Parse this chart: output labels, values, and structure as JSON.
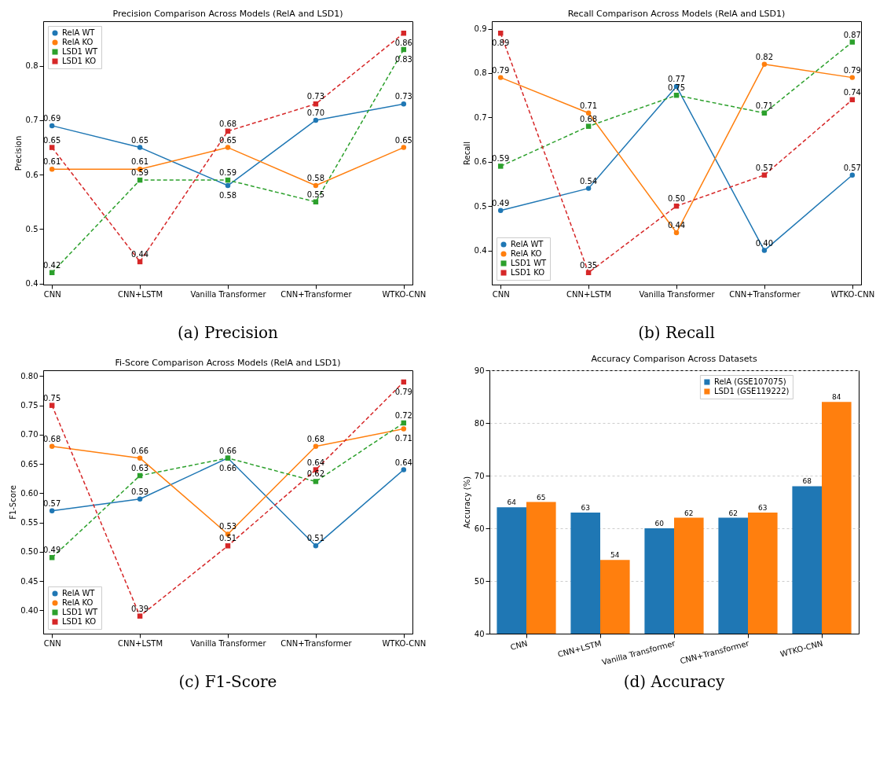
{
  "chart_data": [
    {
      "type": "line",
      "title": "Precision Comparison Across Models (RelA and LSD1)",
      "ylabel": "Precision",
      "categories": [
        "CNN",
        "CNN+LSTM",
        "Vanilla Transformer",
        "CNN+Transformer",
        "WTKO-CNN"
      ],
      "ylim": [
        0.398,
        0.882
      ],
      "yticks": [
        0.4,
        0.5,
        0.6,
        0.7,
        0.8
      ],
      "legend": "top left",
      "annotations": [
        "(a) Precision"
      ],
      "series": [
        {
          "name": "RelA WT",
          "color": "#1f77b4",
          "marker": "circle",
          "line_style": "solid",
          "values": [
            0.69,
            0.65,
            0.58,
            0.7,
            0.73
          ],
          "value_labels": [
            "0.69",
            "0.65",
            "0.58",
            "0.70",
            "0.73"
          ]
        },
        {
          "name": "RelA KO",
          "color": "#ff7f0e",
          "marker": "circle",
          "line_style": "solid",
          "values": [
            0.61,
            0.61,
            0.65,
            0.58,
            0.65
          ],
          "value_labels": [
            "0.61",
            "0.61",
            "0.65",
            "0.58",
            "0.65"
          ]
        },
        {
          "name": "LSD1 WT",
          "color": "#2ca02c",
          "marker": "square",
          "line_style": "dashed",
          "values": [
            0.42,
            0.59,
            0.59,
            0.55,
            0.83
          ],
          "value_labels": [
            "0.42",
            "0.59",
            "0.59",
            "0.55",
            "0.83"
          ]
        },
        {
          "name": "LSD1 KO",
          "color": "#d62728",
          "marker": "square",
          "line_style": "dashed",
          "values": [
            0.65,
            0.44,
            0.68,
            0.73,
            0.86
          ],
          "value_labels": [
            "0.65",
            "0.44",
            "0.68",
            "0.73",
            "0.86"
          ]
        }
      ]
    },
    {
      "type": "line",
      "title": "Recall Comparison Across Models (RelA and LSD1)",
      "ylabel": "Recall",
      "categories": [
        "CNN",
        "CNN+LSTM",
        "Vanilla Transformer",
        "CNN+Transformer",
        "WTKO-CNN"
      ],
      "ylim": [
        0.323,
        0.917
      ],
      "yticks": [
        0.4,
        0.5,
        0.6,
        0.7,
        0.8,
        0.9
      ],
      "legend": "bottom left",
      "annotations": [
        "(b) Recall"
      ],
      "series": [
        {
          "name": "RelA WT",
          "color": "#1f77b4",
          "marker": "circle",
          "line_style": "solid",
          "values": [
            0.49,
            0.54,
            0.77,
            0.4,
            0.57
          ],
          "value_labels": [
            "0.49",
            "0.54",
            "0.77",
            "0.40",
            "0.57"
          ]
        },
        {
          "name": "RelA KO",
          "color": "#ff7f0e",
          "marker": "circle",
          "line_style": "solid",
          "values": [
            0.79,
            0.71,
            0.44,
            0.82,
            0.79
          ],
          "value_labels": [
            "0.79",
            "0.71",
            "0.44",
            "0.82",
            "0.79"
          ]
        },
        {
          "name": "LSD1 WT",
          "color": "#2ca02c",
          "marker": "square",
          "line_style": "dashed",
          "values": [
            0.59,
            0.68,
            0.75,
            0.71,
            0.87
          ],
          "value_labels": [
            "0.59",
            "0.68",
            "0.75",
            "0.71",
            "0.87"
          ]
        },
        {
          "name": "LSD1 KO",
          "color": "#d62728",
          "marker": "square",
          "line_style": "dashed",
          "values": [
            0.89,
            0.35,
            0.5,
            0.57,
            0.74
          ],
          "value_labels": [
            "0.89",
            "0.35",
            "0.50",
            "0.57",
            "0.74"
          ]
        }
      ]
    },
    {
      "type": "line",
      "title": "Fi-Score Comparison Across Models (RelA and LSD1)",
      "ylabel": "F1-Score",
      "categories": [
        "CNN",
        "CNN+LSTM",
        "Vanilla Transformer",
        "CNN+Transformer",
        "WTKO-CNN"
      ],
      "ylim": [
        0.36,
        0.81
      ],
      "yticks": [
        {
          "value": 0.4,
          "label": "0.40"
        },
        {
          "value": 0.45,
          "label": "0.45"
        },
        {
          "value": 0.5,
          "label": "0.50"
        },
        {
          "value": 0.55,
          "label": "0.55"
        },
        {
          "value": 0.6,
          "label": "0.60"
        },
        {
          "value": 0.65,
          "label": "0.65"
        },
        {
          "value": 0.7,
          "label": "0.70"
        },
        {
          "value": 0.75,
          "label": "0.75"
        },
        {
          "value": 0.8,
          "label": "0.80"
        }
      ],
      "legend": "bottom left",
      "annotations": [
        "(c) F1-Score"
      ],
      "series": [
        {
          "name": "RelA WT",
          "color": "#1f77b4",
          "marker": "circle",
          "line_style": "solid",
          "values": [
            0.57,
            0.59,
            0.66,
            0.51,
            0.64
          ],
          "value_labels": [
            "0.57",
            "0.59",
            "0.66",
            "0.51",
            "0.64"
          ]
        },
        {
          "name": "RelA KO",
          "color": "#ff7f0e",
          "marker": "circle",
          "line_style": "solid",
          "values": [
            0.68,
            0.66,
            0.53,
            0.68,
            0.71
          ],
          "value_labels": [
            "0.68",
            "0.66",
            "0.53",
            "0.68",
            "0.71"
          ]
        },
        {
          "name": "LSD1 WT",
          "color": "#2ca02c",
          "marker": "square",
          "line_style": "dashed",
          "values": [
            0.49,
            0.63,
            0.66,
            0.62,
            0.72
          ],
          "value_labels": [
            "0.49",
            "0.63",
            "0.66",
            "0.62",
            "0.72"
          ]
        },
        {
          "name": "LSD1 KO",
          "color": "#d62728",
          "marker": "square",
          "line_style": "dashed",
          "values": [
            0.75,
            0.39,
            0.51,
            0.64,
            0.79
          ],
          "value_labels": [
            "0.75",
            "0.39",
            "0.51",
            "0.64",
            "0.79"
          ]
        }
      ]
    },
    {
      "type": "bar",
      "title": "Accuracy Comparison Across Datasets",
      "ylabel": "Accuracy (%)",
      "categories": [
        "CNN",
        "CNN+LSTM",
        "Vanilla Transformer",
        "CNN+Transformer",
        "WTKO-CNN"
      ],
      "ylim": [
        40,
        90
      ],
      "yticks": [
        40,
        50,
        60,
        70,
        80,
        90
      ],
      "legend": "top right",
      "grid": "y",
      "data_labels": true,
      "annotations": [
        "(d) Accuracy"
      ],
      "series": [
        {
          "name": "RelA (GSE107075)",
          "color": "#1f77b4",
          "values": [
            64,
            63,
            60,
            62,
            68
          ]
        },
        {
          "name": "LSD1 (GSE119222)",
          "color": "#ff7f0e",
          "values": [
            65,
            54,
            62,
            63,
            84
          ]
        }
      ]
    }
  ]
}
